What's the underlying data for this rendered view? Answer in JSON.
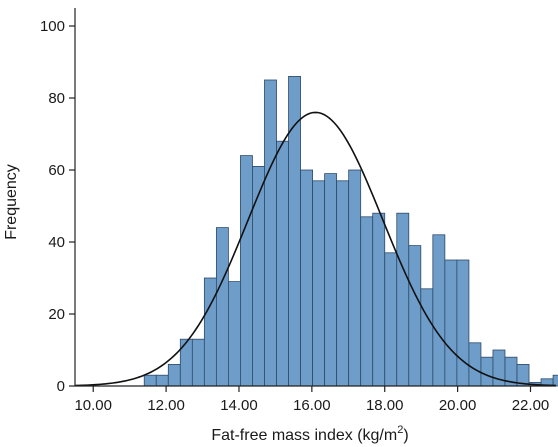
{
  "chart_data": {
    "type": "bar",
    "subtype": "histogram-with-normal-curve",
    "title": "",
    "xlabel": "Fat-free mass index (kg/m",
    "xlabel_superscript": "2",
    "xlabel_suffix": ")",
    "ylabel": "Frequency",
    "xlim": [
      9.5,
      22.7
    ],
    "ylim": [
      0,
      105
    ],
    "x_ticks": [
      10,
      12,
      14,
      16,
      18,
      20,
      22
    ],
    "x_tick_labels": [
      "10.00",
      "12.00",
      "14.00",
      "16.00",
      "18.00",
      "20.00",
      "22.00"
    ],
    "y_ticks": [
      0,
      20,
      40,
      60,
      80,
      100
    ],
    "y_tick_labels": [
      "0",
      "20",
      "40",
      "60",
      "80",
      "100"
    ],
    "bin_width": 0.33,
    "bin_start": 11.4,
    "values": [
      3,
      3,
      6,
      13,
      13,
      30,
      44,
      29,
      64,
      61,
      85,
      68,
      86,
      60,
      57,
      59,
      57,
      60,
      47,
      48,
      37,
      48,
      39,
      27,
      42,
      35,
      35,
      12,
      8,
      10,
      8,
      6,
      1,
      2,
      3,
      1
    ],
    "normal_curve": {
      "mean": 16.1,
      "sd": 1.85,
      "peak": 76
    },
    "bar_color": "#6e9dc9",
    "bar_edge_color": "#2e4a68",
    "curve_color": "#111111",
    "grid": false,
    "legend": "none"
  }
}
